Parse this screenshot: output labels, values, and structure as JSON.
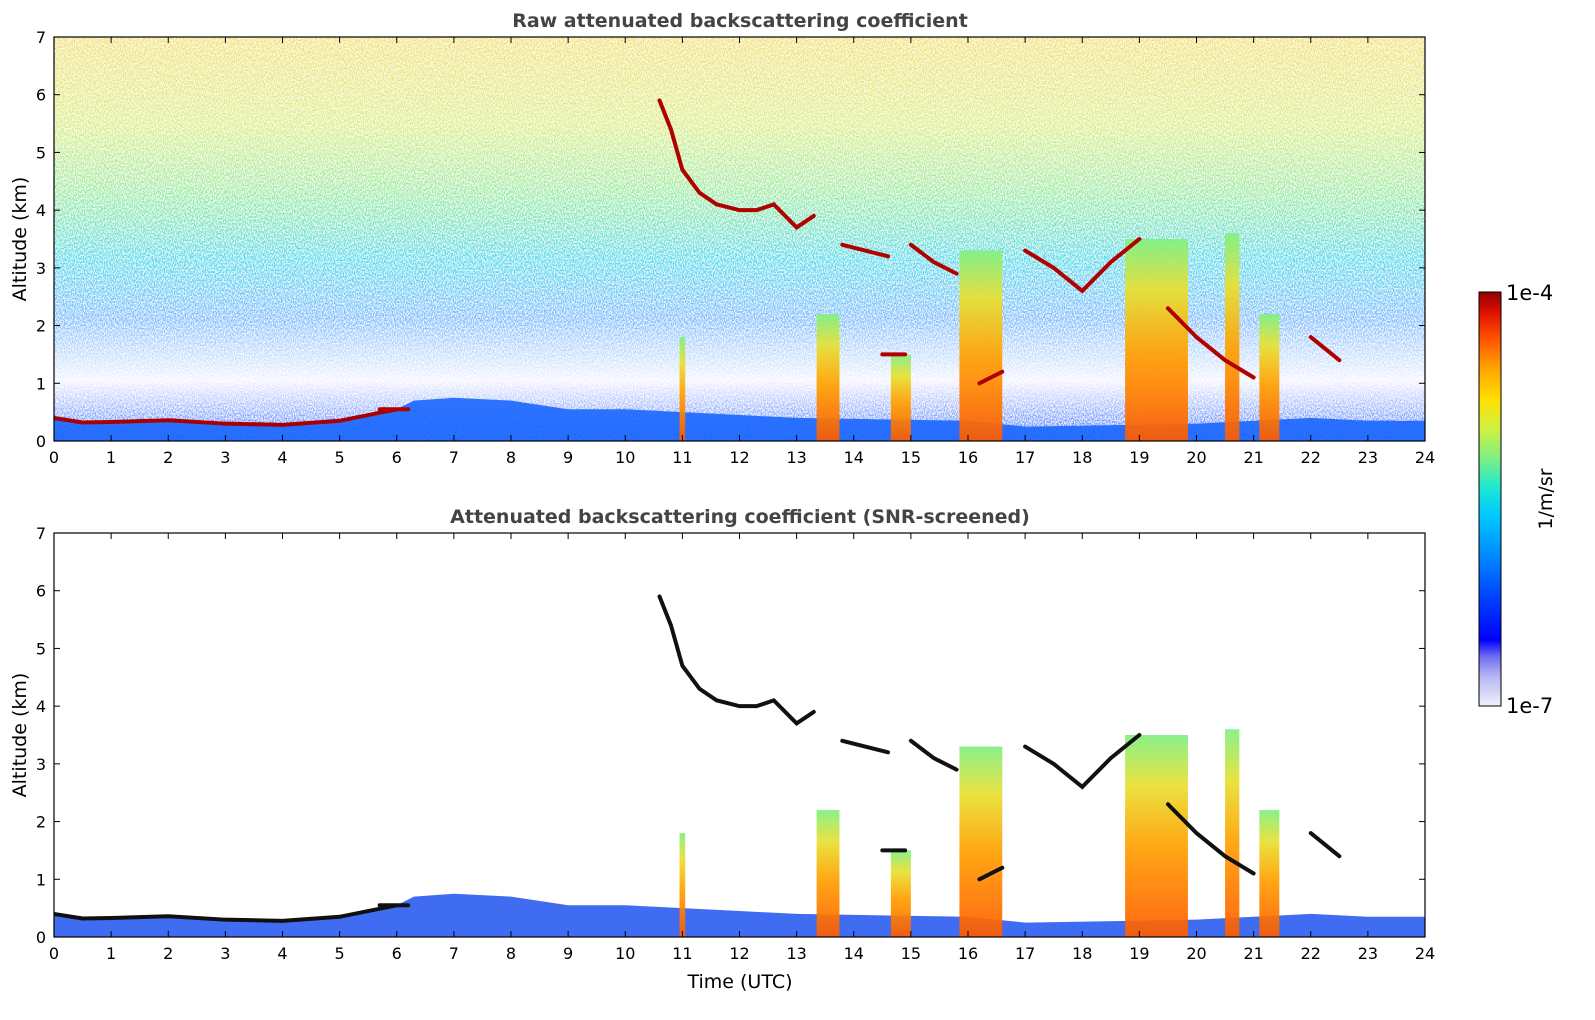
{
  "chart_data": [
    {
      "type": "heatmap",
      "title": "Raw attenuated backscattering coefficient",
      "xlabel": "",
      "ylabel": "Altitude (km)",
      "xlim": [
        0,
        24
      ],
      "ylim": [
        0,
        7
      ],
      "x_ticks": [
        "0",
        "1",
        "2",
        "3",
        "4",
        "5",
        "6",
        "7",
        "8",
        "9",
        "10",
        "11",
        "12",
        "13",
        "14",
        "15",
        "16",
        "17",
        "18",
        "19",
        "20",
        "21",
        "22",
        "23",
        "24"
      ],
      "y_ticks": [
        "0",
        "1",
        "2",
        "3",
        "4",
        "5",
        "6",
        "7"
      ],
      "background": "noisy molecular signal increasing with altitude (blue near ground to yellow/red aloft)",
      "boundary_layer": [
        [
          0,
          0.4
        ],
        [
          0.5,
          0.32
        ],
        [
          1,
          0.33
        ],
        [
          2,
          0.36
        ],
        [
          3,
          0.3
        ],
        [
          4,
          0.28
        ],
        [
          5,
          0.35
        ],
        [
          6,
          0.55
        ],
        [
          6.3,
          0.7
        ],
        [
          7,
          0.75
        ],
        [
          8,
          0.7
        ],
        [
          9,
          0.55
        ],
        [
          10,
          0.55
        ],
        [
          11,
          0.5
        ],
        [
          12,
          0.45
        ],
        [
          13,
          0.4
        ],
        [
          16,
          0.35
        ],
        [
          17,
          0.25
        ],
        [
          20,
          0.3
        ],
        [
          22,
          0.4
        ],
        [
          23,
          0.35
        ],
        [
          24,
          0.35
        ]
      ],
      "cloud_layers": [
        {
          "x": [
            10.6,
            10.8,
            11,
            11.3,
            11.6,
            12,
            12.3,
            12.6
          ],
          "y": [
            5.9,
            5.4,
            4.7,
            4.3,
            4.1,
            4.0,
            4.0,
            4.1
          ]
        },
        {
          "x": [
            12.6,
            13,
            13.3
          ],
          "y": [
            4.1,
            3.7,
            3.9
          ]
        },
        {
          "x": [
            13.8,
            14.2,
            14.6
          ],
          "y": [
            3.4,
            3.3,
            3.2
          ]
        },
        {
          "x": [
            15,
            15.4,
            15.8
          ],
          "y": [
            3.4,
            3.1,
            2.9
          ]
        },
        {
          "x": [
            17,
            17.5,
            18,
            18.5,
            19
          ],
          "y": [
            3.3,
            3.0,
            2.6,
            3.1,
            3.5
          ]
        },
        {
          "x": [
            19.5,
            20,
            20.5,
            21
          ],
          "y": [
            2.3,
            1.8,
            1.4,
            1.1
          ]
        },
        {
          "x": [
            22,
            22.5
          ],
          "y": [
            1.8,
            1.4
          ]
        },
        {
          "x": [
            14.5,
            14.9
          ],
          "y": [
            1.5,
            1.5
          ]
        },
        {
          "x": [
            16.2,
            16.6
          ],
          "y": [
            1.0,
            1.2
          ]
        },
        {
          "x": [
            5.7,
            6.2
          ],
          "y": [
            0.55,
            0.55
          ]
        }
      ],
      "precipitation_shafts": [
        {
          "x_start": 13.35,
          "x_end": 13.75,
          "top_km": 2.2
        },
        {
          "x_start": 14.65,
          "x_end": 15.0,
          "top_km": 1.5
        },
        {
          "x_start": 15.85,
          "x_end": 16.6,
          "top_km": 3.3
        },
        {
          "x_start": 18.75,
          "x_end": 19.85,
          "top_km": 3.5
        },
        {
          "x_start": 20.5,
          "x_end": 20.75,
          "top_km": 3.6
        },
        {
          "x_start": 21.1,
          "x_end": 21.45,
          "top_km": 2.2
        },
        {
          "x_start": 10.95,
          "x_end": 11.05,
          "top_km": 1.8
        }
      ]
    },
    {
      "type": "heatmap",
      "title": "Attenuated backscattering coefficient (SNR-screened)",
      "xlabel": "Time (UTC)",
      "ylabel": "Altitude (km)",
      "xlim": [
        0,
        24
      ],
      "ylim": [
        0,
        7
      ],
      "x_ticks": [
        "0",
        "1",
        "2",
        "3",
        "4",
        "5",
        "6",
        "7",
        "8",
        "9",
        "10",
        "11",
        "12",
        "13",
        "14",
        "15",
        "16",
        "17",
        "18",
        "19",
        "20",
        "21",
        "22",
        "23",
        "24"
      ],
      "y_ticks": [
        "0",
        "1",
        "2",
        "3",
        "4",
        "5",
        "6",
        "7"
      ],
      "background": "screened (white) above the boundary layer"
    }
  ],
  "colorbar": {
    "label": "1/m/sr",
    "max_label": "1e-4",
    "min_label": "1e-7",
    "scale": "log",
    "colors": [
      "#f0f0fb",
      "#b8b8f2",
      "#6c6cf0",
      "#0000ff",
      "#0040ff",
      "#0088ff",
      "#00c8ff",
      "#20e8d0",
      "#80f080",
      "#d0f040",
      "#ffe000",
      "#ffa000",
      "#ff5000",
      "#e01000",
      "#900000"
    ]
  }
}
